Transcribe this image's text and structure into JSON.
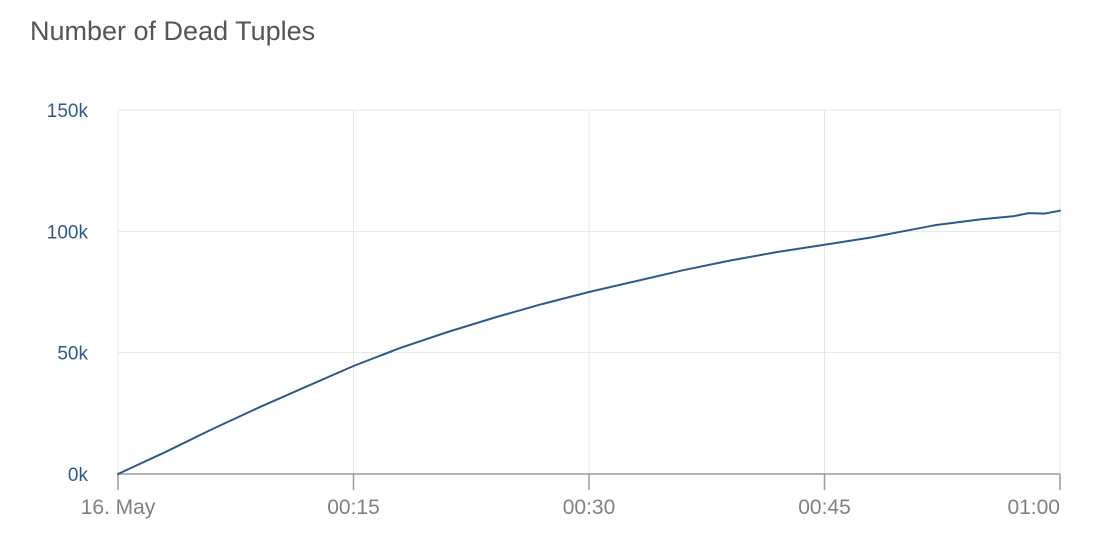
{
  "chart_data": {
    "type": "line",
    "title": "Number of Dead Tuples",
    "xlabel": "",
    "ylabel": "",
    "x_ticks": [
      "16. May",
      "00:15",
      "00:30",
      "00:45",
      "01:00"
    ],
    "y_ticks": [
      "0k",
      "50k",
      "100k",
      "150k"
    ],
    "ylim": [
      0,
      150000
    ],
    "xlim": [
      "00:00",
      "01:00"
    ],
    "grid": true,
    "legend": "none",
    "line_color": "#2e5a8a",
    "series": [
      {
        "x": [
          "00:00",
          "00:03",
          "00:06",
          "00:09",
          "00:12",
          "00:15",
          "00:18",
          "00:21",
          "00:24",
          "00:27",
          "00:30",
          "00:33",
          "00:36",
          "00:39",
          "00:42",
          "00:45",
          "00:48",
          "00:50",
          "00:52",
          "00:55",
          "00:57",
          "00:58",
          "00:59",
          "01:00"
        ],
        "values": [
          0,
          9000,
          18500,
          27500,
          36000,
          44500,
          52000,
          58500,
          64500,
          70000,
          75000,
          79500,
          84000,
          88000,
          91500,
          94500,
          97500,
          100000,
          102500,
          105000,
          106200,
          107500,
          107300,
          108500
        ]
      }
    ]
  }
}
